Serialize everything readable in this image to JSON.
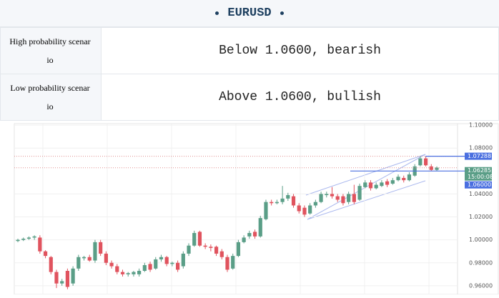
{
  "header": {
    "title": "EURUSD"
  },
  "table": {
    "rows": [
      [
        "High probability scenario",
        "Below 1.0600, bearish"
      ],
      [
        "Low probability scenario",
        "Above 1.0600, bullish"
      ]
    ]
  },
  "chart_data": {
    "type": "candlestick",
    "ylim": [
      0.9537,
      1.1013
    ],
    "yticks": [
      {
        "value": 1.1,
        "label": "1.10000"
      },
      {
        "value": 1.08,
        "label": "1.08000"
      },
      {
        "value": 1.04,
        "label": "1.04000"
      },
      {
        "value": 1.02,
        "label": "1.02000"
      },
      {
        "value": 1.0,
        "label": "1.00000"
      },
      {
        "value": 0.98,
        "label": "0.98000"
      },
      {
        "value": 0.96,
        "label": "0.96000"
      }
    ],
    "up_color": "#5a9e87",
    "down_color": "#e0535e",
    "price_labels": [
      {
        "value": 1.07288,
        "label": "1.07288",
        "color": "#4a6fe0"
      },
      {
        "value": 1.06285,
        "label": "1.06285",
        "time": "15:00:08",
        "color": "#5a9e87"
      },
      {
        "value": 1.06,
        "label": "1.06000",
        "color": "#4a6fe0"
      }
    ],
    "candles": [
      [
        0.999,
        1.001,
        0.998,
        1.0
      ],
      [
        1.0,
        1.002,
        0.999,
        1.001
      ],
      [
        1.001,
        1.003,
        1.0,
        1.002
      ],
      [
        1.002,
        1.004,
        1.0,
        1.003
      ],
      [
        1.002,
        1.004,
        0.988,
        0.99
      ],
      [
        0.99,
        0.991,
        0.984,
        0.986
      ],
      [
        0.985,
        0.986,
        0.97,
        0.972
      ],
      [
        0.972,
        0.974,
        0.958,
        0.962
      ],
      [
        0.962,
        0.966,
        0.96,
        0.964
      ],
      [
        0.973,
        0.975,
        0.957,
        0.959
      ],
      [
        0.962,
        0.977,
        0.96,
        0.975
      ],
      [
        0.975,
        0.987,
        0.973,
        0.985
      ],
      [
        0.984,
        0.986,
        0.982,
        0.985
      ],
      [
        0.985,
        0.987,
        0.981,
        0.982
      ],
      [
        0.982,
        1.0,
        0.98,
        0.998
      ],
      [
        0.998,
        1.0,
        0.986,
        0.988
      ],
      [
        0.988,
        0.99,
        0.978,
        0.98
      ],
      [
        0.98,
        0.982,
        0.975,
        0.977
      ],
      [
        0.977,
        0.979,
        0.97,
        0.972
      ],
      [
        0.972,
        0.974,
        0.968,
        0.97
      ],
      [
        0.97,
        0.972,
        0.968,
        0.971
      ],
      [
        0.97,
        0.973,
        0.968,
        0.972
      ],
      [
        0.97,
        0.975,
        0.968,
        0.973
      ],
      [
        0.973,
        0.98,
        0.972,
        0.978
      ],
      [
        0.979,
        0.981,
        0.972,
        0.974
      ],
      [
        0.975,
        0.985,
        0.974,
        0.983
      ],
      [
        0.983,
        0.987,
        0.981,
        0.985
      ],
      [
        0.985,
        0.986,
        0.977,
        0.979
      ],
      [
        0.979,
        0.981,
        0.977,
        0.98
      ],
      [
        0.98,
        0.982,
        0.972,
        0.974
      ],
      [
        0.977,
        0.99,
        0.975,
        0.988
      ],
      [
        0.988,
        0.997,
        0.986,
        0.995
      ],
      [
        0.995,
        1.008,
        0.994,
        1.006
      ],
      [
        1.007,
        1.008,
        0.994,
        0.995
      ],
      [
        0.995,
        0.997,
        0.992,
        0.994
      ],
      [
        0.994,
        0.996,
        0.99,
        0.993
      ],
      [
        0.994,
        0.995,
        0.986,
        0.988
      ],
      [
        0.99,
        0.992,
        0.983,
        0.985
      ],
      [
        0.985,
        0.987,
        0.972,
        0.974
      ],
      [
        0.975,
        0.988,
        0.974,
        0.986
      ],
      [
        0.986,
        1.0,
        0.985,
        0.998
      ],
      [
        0.998,
        1.004,
        0.997,
        1.002
      ],
      [
        1.003,
        1.008,
        1.001,
        1.006
      ],
      [
        1.007,
        1.009,
        1.001,
        1.003
      ],
      [
        1.003,
        1.021,
        1.002,
        1.019
      ],
      [
        1.018,
        1.035,
        1.017,
        1.033
      ],
      [
        1.033,
        1.035,
        1.03,
        1.032
      ],
      [
        1.032,
        1.035,
        1.031,
        1.033
      ],
      [
        1.033,
        1.047,
        1.031,
        1.036
      ],
      [
        1.036,
        1.041,
        1.034,
        1.039
      ],
      [
        1.038,
        1.04,
        1.028,
        1.03
      ],
      [
        1.03,
        1.032,
        1.023,
        1.025
      ],
      [
        1.028,
        1.03,
        1.02,
        1.022
      ],
      [
        1.023,
        1.032,
        1.022,
        1.03
      ],
      [
        1.03,
        1.035,
        1.028,
        1.033
      ],
      [
        1.033,
        1.042,
        1.032,
        1.04
      ],
      [
        1.039,
        1.042,
        1.037,
        1.04
      ],
      [
        1.04,
        1.046,
        1.036,
        1.038
      ],
      [
        1.038,
        1.04,
        1.033,
        1.035
      ],
      [
        1.038,
        1.04,
        1.03,
        1.032
      ],
      [
        1.033,
        1.042,
        1.031,
        1.04
      ],
      [
        1.04,
        1.048,
        1.031,
        1.033
      ],
      [
        1.035,
        1.049,
        1.034,
        1.047
      ],
      [
        1.046,
        1.052,
        1.045,
        1.05
      ],
      [
        1.05,
        1.052,
        1.043,
        1.045
      ],
      [
        1.045,
        1.05,
        1.044,
        1.048
      ],
      [
        1.047,
        1.052,
        1.046,
        1.05
      ],
      [
        1.051,
        1.053,
        1.046,
        1.048
      ],
      [
        1.049,
        1.054,
        1.048,
        1.052
      ],
      [
        1.052,
        1.057,
        1.051,
        1.055
      ],
      [
        1.054,
        1.056,
        1.05,
        1.052
      ],
      [
        1.052,
        1.059,
        1.051,
        1.057
      ],
      [
        1.056,
        1.066,
        1.055,
        1.064
      ],
      [
        1.065,
        1.073,
        1.064,
        1.071
      ],
      [
        1.071,
        1.073,
        1.064,
        1.065
      ],
      [
        1.064,
        1.066,
        1.06,
        1.061
      ],
      [
        1.061,
        1.064,
        1.06,
        1.063
      ]
    ]
  }
}
